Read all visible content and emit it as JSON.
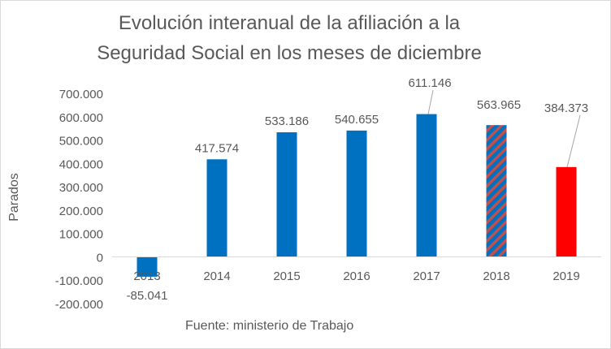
{
  "chart_data": {
    "type": "bar",
    "title_line1": "Evolución interanual de la afiliación a la",
    "title_line2": "Seguridad Social en los meses de diciembre",
    "ylabel": "Parados",
    "source": "Fuente: ministerio de Trabajo",
    "categories": [
      "2013",
      "2014",
      "2015",
      "2016",
      "2017",
      "2018",
      "2019"
    ],
    "values": [
      -85041,
      417574,
      533186,
      540655,
      611146,
      563965,
      384373
    ],
    "data_labels": [
      "-85.041",
      "417.574",
      "533.186",
      "540.655",
      "611.146",
      "563.965",
      "384.373"
    ],
    "bar_styles": [
      "blue",
      "blue",
      "blue",
      "blue",
      "blue",
      "striped",
      "red"
    ],
    "ylim": [
      -200000,
      700000
    ],
    "yticks": [
      700000,
      600000,
      500000,
      400000,
      300000,
      200000,
      100000,
      0,
      -100000,
      -200000
    ],
    "ytick_labels": [
      "700.000",
      "600.000",
      "500.000",
      "400.000",
      "300.000",
      "200.000",
      "100.000",
      "0",
      "-100.000",
      "-200.000"
    ],
    "colors": {
      "blue": "#0070c0",
      "red": "#ff0000",
      "axis": "#d9d9d9",
      "text": "#595959"
    }
  }
}
